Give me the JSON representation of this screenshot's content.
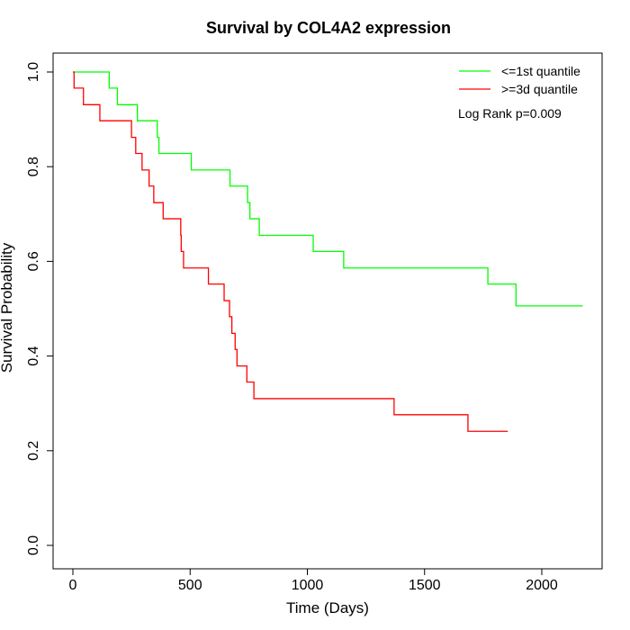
{
  "chart_data": {
    "type": "line",
    "title": "Survival by COL4A2 expression",
    "xlabel": "Time (Days)",
    "ylabel": "Survival Probability",
    "xlim": [
      0,
      2200
    ],
    "ylim": [
      0,
      1
    ],
    "x_ticks": [
      0,
      500,
      1000,
      1500,
      2000
    ],
    "y_ticks": [
      0.0,
      0.2,
      0.4,
      0.6,
      0.8,
      1.0
    ],
    "x_tick_labels": [
      "0",
      "500",
      "1000",
      "1500",
      "2000"
    ],
    "y_tick_labels": [
      "0.0",
      "0.2",
      "0.4",
      "0.6",
      "0.8",
      "1.0"
    ],
    "grid": false,
    "legend_position": "top-right",
    "annotation": "Log Rank p=0.009",
    "series": [
      {
        "name": "<=1st quantile",
        "color": "#00ff00",
        "step": true,
        "x": [
          0,
          155,
          190,
          275,
          360,
          367,
          505,
          670,
          745,
          755,
          795,
          1025,
          1155,
          1770,
          1890,
          2175
        ],
        "y": [
          1.0,
          0.966,
          0.931,
          0.897,
          0.862,
          0.828,
          0.793,
          0.759,
          0.724,
          0.69,
          0.655,
          0.621,
          0.586,
          0.552,
          0.506,
          0.506
        ]
      },
      {
        "name": ">=3d quantile",
        "color": "#ff0000",
        "step": true,
        "x": [
          0,
          5,
          45,
          115,
          250,
          268,
          295,
          325,
          345,
          385,
          460,
          462,
          470,
          472,
          578,
          645,
          668,
          678,
          692,
          700,
          742,
          772,
          1370,
          1685,
          1855
        ],
        "y": [
          1.0,
          0.966,
          0.931,
          0.897,
          0.862,
          0.828,
          0.793,
          0.759,
          0.724,
          0.69,
          0.655,
          0.621,
          0.621,
          0.586,
          0.552,
          0.517,
          0.483,
          0.448,
          0.414,
          0.379,
          0.345,
          0.31,
          0.276,
          0.241,
          0.241
        ]
      }
    ]
  }
}
